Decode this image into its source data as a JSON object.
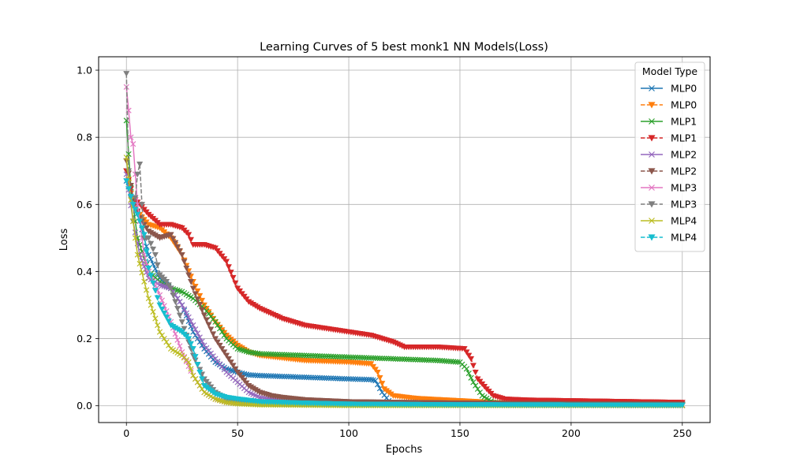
{
  "chart_data": {
    "type": "line",
    "title": "Learning Curves of 5 best monk1 NN Models(Loss)",
    "xlabel": "Epochs",
    "ylabel": "Loss",
    "xlim": [
      -12.5,
      262.5
    ],
    "ylim": [
      -0.05,
      1.04
    ],
    "xticks": [
      0,
      50,
      100,
      150,
      200,
      250
    ],
    "yticks": [
      0.0,
      0.2,
      0.4,
      0.6,
      0.8,
      1.0
    ],
    "xtick_labels": [
      "0",
      "50",
      "100",
      "150",
      "200",
      "250"
    ],
    "ytick_labels": [
      "0.0",
      "0.2",
      "0.4",
      "0.6",
      "0.8",
      "1.0"
    ],
    "grid": true,
    "legend": {
      "title": "Model Type",
      "placement": "top-right"
    },
    "series": [
      {
        "name": "MLP0",
        "color": "#1f77b4",
        "marker": "x",
        "dashed": false,
        "points": [
          [
            0,
            0.67
          ],
          [
            3,
            0.62
          ],
          [
            6,
            0.55
          ],
          [
            10,
            0.45
          ],
          [
            15,
            0.38
          ],
          [
            20,
            0.35
          ],
          [
            25,
            0.3
          ],
          [
            30,
            0.22
          ],
          [
            35,
            0.17
          ],
          [
            40,
            0.13
          ],
          [
            45,
            0.11
          ],
          [
            50,
            0.1
          ],
          [
            55,
            0.092
          ],
          [
            60,
            0.09
          ],
          [
            80,
            0.085
          ],
          [
            100,
            0.08
          ],
          [
            110,
            0.078
          ],
          [
            112,
            0.075
          ],
          [
            115,
            0.04
          ],
          [
            118,
            0.015
          ],
          [
            120,
            0.005
          ],
          [
            140,
            0.002
          ],
          [
            250,
            0.001
          ]
        ]
      },
      {
        "name": "MLP0",
        "color": "#ff7f0e",
        "marker": "v",
        "dashed": true,
        "points": [
          [
            0,
            0.7
          ],
          [
            3,
            0.6
          ],
          [
            6,
            0.57
          ],
          [
            10,
            0.54
          ],
          [
            15,
            0.53
          ],
          [
            20,
            0.5
          ],
          [
            25,
            0.45
          ],
          [
            30,
            0.37
          ],
          [
            35,
            0.3
          ],
          [
            40,
            0.25
          ],
          [
            45,
            0.21
          ],
          [
            50,
            0.18
          ],
          [
            55,
            0.16
          ],
          [
            60,
            0.15
          ],
          [
            80,
            0.135
          ],
          [
            100,
            0.13
          ],
          [
            110,
            0.125
          ],
          [
            113,
            0.1
          ],
          [
            116,
            0.05
          ],
          [
            120,
            0.03
          ],
          [
            130,
            0.022
          ],
          [
            150,
            0.015
          ],
          [
            170,
            0.008
          ],
          [
            200,
            0.005
          ],
          [
            250,
            0.003
          ]
        ]
      },
      {
        "name": "MLP1",
        "color": "#2ca02c",
        "marker": "x",
        "dashed": false,
        "points": [
          [
            0,
            0.85
          ],
          [
            2,
            0.65
          ],
          [
            5,
            0.5
          ],
          [
            10,
            0.4
          ],
          [
            15,
            0.37
          ],
          [
            20,
            0.35
          ],
          [
            25,
            0.34
          ],
          [
            30,
            0.32
          ],
          [
            35,
            0.29
          ],
          [
            40,
            0.25
          ],
          [
            45,
            0.2
          ],
          [
            50,
            0.17
          ],
          [
            55,
            0.16
          ],
          [
            60,
            0.155
          ],
          [
            80,
            0.15
          ],
          [
            100,
            0.145
          ],
          [
            120,
            0.14
          ],
          [
            140,
            0.135
          ],
          [
            150,
            0.13
          ],
          [
            153,
            0.11
          ],
          [
            156,
            0.07
          ],
          [
            160,
            0.03
          ],
          [
            165,
            0.01
          ],
          [
            170,
            0.005
          ],
          [
            250,
            0.002
          ]
        ]
      },
      {
        "name": "MLP1",
        "color": "#d62728",
        "marker": "v",
        "dashed": true,
        "points": [
          [
            0,
            0.7
          ],
          [
            3,
            0.62
          ],
          [
            6,
            0.6
          ],
          [
            10,
            0.57
          ],
          [
            15,
            0.54
          ],
          [
            20,
            0.54
          ],
          [
            25,
            0.53
          ],
          [
            28,
            0.51
          ],
          [
            30,
            0.48
          ],
          [
            35,
            0.48
          ],
          [
            40,
            0.47
          ],
          [
            45,
            0.43
          ],
          [
            50,
            0.35
          ],
          [
            55,
            0.31
          ],
          [
            60,
            0.29
          ],
          [
            70,
            0.26
          ],
          [
            80,
            0.24
          ],
          [
            90,
            0.23
          ],
          [
            100,
            0.22
          ],
          [
            110,
            0.21
          ],
          [
            120,
            0.19
          ],
          [
            125,
            0.175
          ],
          [
            140,
            0.175
          ],
          [
            152,
            0.17
          ],
          [
            155,
            0.14
          ],
          [
            158,
            0.08
          ],
          [
            162,
            0.05
          ],
          [
            165,
            0.03
          ],
          [
            170,
            0.02
          ],
          [
            180,
            0.017
          ],
          [
            200,
            0.015
          ],
          [
            250,
            0.01
          ]
        ]
      },
      {
        "name": "MLP2",
        "color": "#9467bd",
        "marker": "x",
        "dashed": false,
        "points": [
          [
            0,
            0.69
          ],
          [
            3,
            0.55
          ],
          [
            6,
            0.45
          ],
          [
            10,
            0.38
          ],
          [
            15,
            0.36
          ],
          [
            20,
            0.35
          ],
          [
            25,
            0.3
          ],
          [
            30,
            0.24
          ],
          [
            35,
            0.18
          ],
          [
            40,
            0.14
          ],
          [
            45,
            0.1
          ],
          [
            50,
            0.07
          ],
          [
            55,
            0.04
          ],
          [
            60,
            0.025
          ],
          [
            70,
            0.015
          ],
          [
            80,
            0.01
          ],
          [
            100,
            0.005
          ],
          [
            150,
            0.002
          ],
          [
            250,
            0.001
          ]
        ]
      },
      {
        "name": "MLP2",
        "color": "#8c564b",
        "marker": "v",
        "dashed": true,
        "points": [
          [
            0,
            0.73
          ],
          [
            3,
            0.62
          ],
          [
            6,
            0.56
          ],
          [
            10,
            0.52
          ],
          [
            15,
            0.5
          ],
          [
            20,
            0.51
          ],
          [
            25,
            0.45
          ],
          [
            30,
            0.35
          ],
          [
            35,
            0.27
          ],
          [
            40,
            0.2
          ],
          [
            45,
            0.15
          ],
          [
            50,
            0.1
          ],
          [
            55,
            0.06
          ],
          [
            60,
            0.04
          ],
          [
            65,
            0.03
          ],
          [
            70,
            0.025
          ],
          [
            80,
            0.018
          ],
          [
            100,
            0.012
          ],
          [
            150,
            0.008
          ],
          [
            200,
            0.006
          ],
          [
            250,
            0.005
          ]
        ]
      },
      {
        "name": "MLP3",
        "color": "#e377c2",
        "marker": "x",
        "dashed": false,
        "points": [
          [
            0,
            0.95
          ],
          [
            1,
            0.88
          ],
          [
            2,
            0.8
          ],
          [
            3,
            0.78
          ],
          [
            5,
            0.6
          ],
          [
            8,
            0.45
          ],
          [
            10,
            0.4
          ],
          [
            15,
            0.33
          ],
          [
            20,
            0.25
          ],
          [
            25,
            0.16
          ],
          [
            30,
            0.09
          ],
          [
            35,
            0.04
          ],
          [
            40,
            0.02
          ],
          [
            45,
            0.012
          ],
          [
            50,
            0.008
          ],
          [
            60,
            0.004
          ],
          [
            100,
            0.002
          ],
          [
            250,
            0.001
          ]
        ]
      },
      {
        "name": "MLP3",
        "color": "#7f7f7f",
        "marker": "v",
        "dashed": true,
        "points": [
          [
            0,
            0.99
          ],
          [
            1,
            0.7
          ],
          [
            2,
            0.62
          ],
          [
            3,
            0.55
          ],
          [
            5,
            0.69
          ],
          [
            6,
            0.72
          ],
          [
            7,
            0.6
          ],
          [
            8,
            0.5
          ],
          [
            10,
            0.5
          ],
          [
            13,
            0.45
          ],
          [
            15,
            0.39
          ],
          [
            18,
            0.37
          ],
          [
            20,
            0.35
          ],
          [
            25,
            0.25
          ],
          [
            30,
            0.15
          ],
          [
            35,
            0.08
          ],
          [
            40,
            0.04
          ],
          [
            45,
            0.02
          ],
          [
            50,
            0.01
          ],
          [
            60,
            0.005
          ],
          [
            100,
            0.002
          ],
          [
            250,
            0.001
          ]
        ]
      },
      {
        "name": "MLP4",
        "color": "#bcbd22",
        "marker": "x",
        "dashed": false,
        "points": [
          [
            0,
            0.74
          ],
          [
            3,
            0.55
          ],
          [
            5,
            0.45
          ],
          [
            8,
            0.37
          ],
          [
            10,
            0.32
          ],
          [
            15,
            0.22
          ],
          [
            20,
            0.17
          ],
          [
            25,
            0.15
          ],
          [
            28,
            0.13
          ],
          [
            30,
            0.09
          ],
          [
            35,
            0.04
          ],
          [
            40,
            0.02
          ],
          [
            45,
            0.01
          ],
          [
            50,
            0.006
          ],
          [
            60,
            0.003
          ],
          [
            100,
            0.001
          ],
          [
            250,
            0.001
          ]
        ]
      },
      {
        "name": "MLP4",
        "color": "#17becf",
        "marker": "v",
        "dashed": true,
        "points": [
          [
            0,
            0.67
          ],
          [
            3,
            0.6
          ],
          [
            5,
            0.57
          ],
          [
            8,
            0.51
          ],
          [
            10,
            0.41
          ],
          [
            15,
            0.3
          ],
          [
            20,
            0.24
          ],
          [
            25,
            0.22
          ],
          [
            28,
            0.2
          ],
          [
            30,
            0.17
          ],
          [
            33,
            0.1
          ],
          [
            35,
            0.06
          ],
          [
            40,
            0.035
          ],
          [
            45,
            0.025
          ],
          [
            50,
            0.02
          ],
          [
            60,
            0.012
          ],
          [
            80,
            0.008
          ],
          [
            100,
            0.005
          ],
          [
            150,
            0.003
          ],
          [
            250,
            0.002
          ]
        ]
      }
    ]
  }
}
